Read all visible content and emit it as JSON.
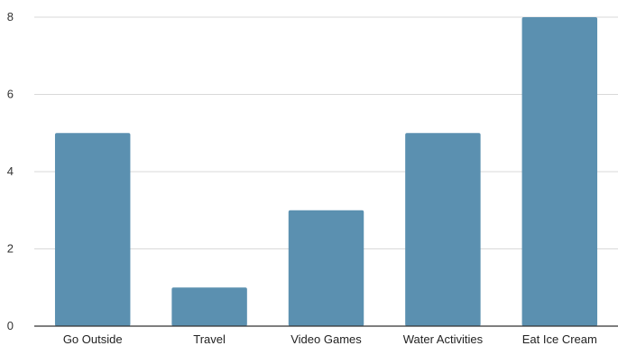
{
  "chart_data": {
    "type": "bar",
    "title": "",
    "xlabel": "",
    "ylabel": "",
    "categories": [
      "Go Outside",
      "Travel",
      "Video Games",
      "Water Activities",
      "Eat Ice Cream"
    ],
    "values": [
      5,
      1,
      3,
      5,
      8
    ],
    "ylim": [
      0,
      8
    ],
    "yticks": [
      0,
      2,
      4,
      6,
      8
    ],
    "grid": true,
    "legend": "none",
    "bar_color": "#5b90b0"
  }
}
